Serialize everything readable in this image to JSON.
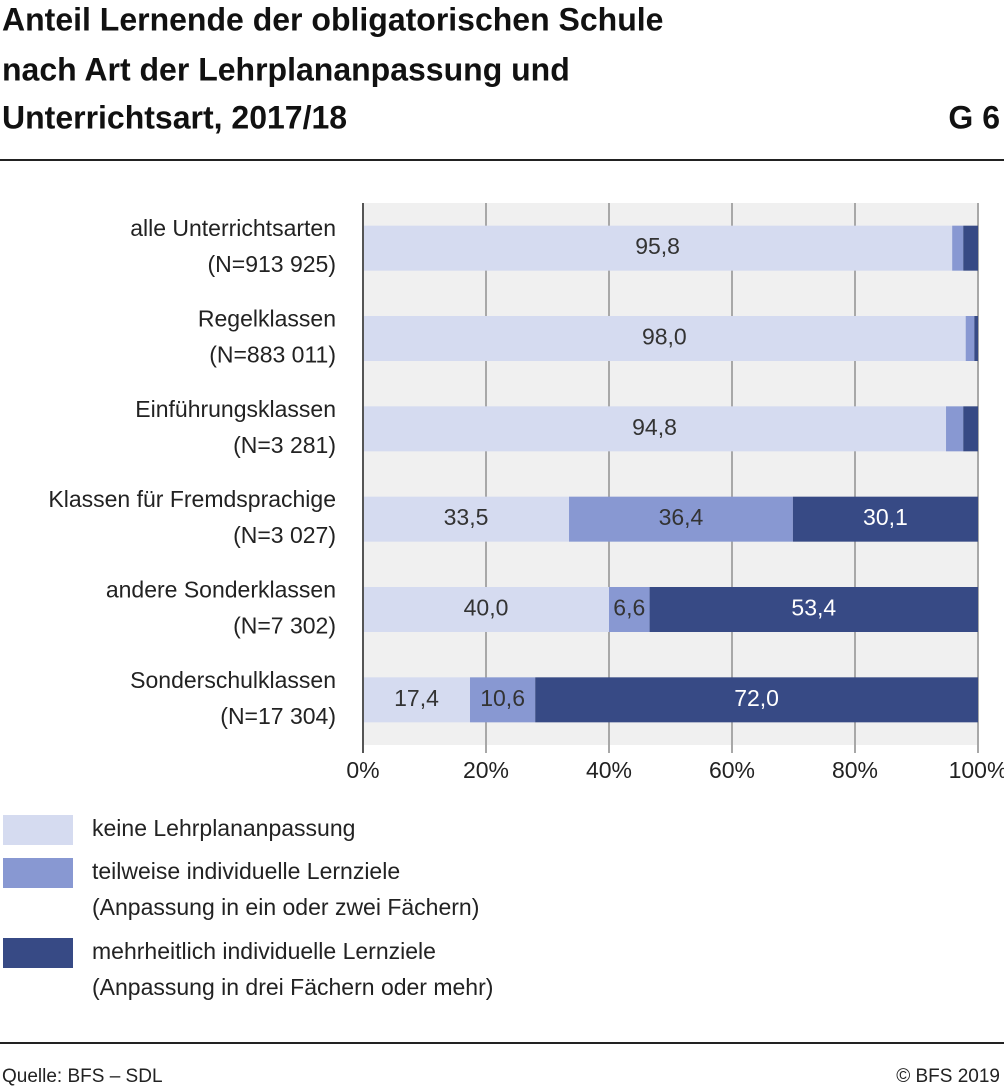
{
  "chart_data": {
    "type": "bar",
    "orientation": "horizontal",
    "stacked": true,
    "title": [
      "Anteil Lernende der obligatorischen Schule",
      "nach Art der Lehrplananpassung und",
      "Unterrichtsart, 2017/18"
    ],
    "chart_id": "G 6",
    "categories": [
      "alle Unterrichtsarten",
      "Regelklassen",
      "Einführungsklassen",
      "Klassen für Fremdsprachige",
      "andere Sonderklassen",
      "Sonderschulklassen"
    ],
    "category_counts": [
      "(N=913 925)",
      "(N=883 011)",
      "(N=3 281)",
      "(N=3 027)",
      "(N=7 302)",
      "(N=17 304)"
    ],
    "series": [
      {
        "name": "keine Lehrplananpassung",
        "color": "#d5dbf0",
        "label_color": "#333333",
        "values": [
          95.8,
          98.0,
          94.8,
          33.5,
          40.0,
          17.4
        ],
        "value_labels": [
          "95,8",
          "98,0",
          "94,8",
          "33,5",
          "40,0",
          "17,4"
        ]
      },
      {
        "name": "teilweise individuelle Lernziele",
        "name_note": "(Anpassung in ein oder zwei Fächern)",
        "color": "#8898d2",
        "label_color": "#333333",
        "values": [
          1.8,
          1.4,
          2.8,
          36.4,
          6.6,
          10.6
        ],
        "value_labels": [
          null,
          null,
          null,
          "36,4",
          "6,6",
          "10,6"
        ]
      },
      {
        "name": "mehrheitlich individuelle Lernziele",
        "name_note": "(Anpassung in drei Fächern oder mehr)",
        "color": "#374a85",
        "label_color": "#ffffff",
        "values": [
          2.4,
          0.6,
          2.4,
          30.1,
          53.4,
          72.0
        ],
        "value_labels": [
          null,
          null,
          null,
          "30,1",
          "53,4",
          "72,0"
        ]
      }
    ],
    "xlim": [
      0,
      100
    ],
    "xticks": [
      {
        "value": 0,
        "label": "0%"
      },
      {
        "value": 20,
        "label": "20%"
      },
      {
        "value": 40,
        "label": "40%"
      },
      {
        "value": 60,
        "label": "60%"
      },
      {
        "value": 80,
        "label": "80%"
      },
      {
        "value": 100,
        "label": "100%"
      }
    ],
    "grid": true,
    "source": "Quelle: BFS – SDL",
    "copyright": "© BFS 2019"
  }
}
